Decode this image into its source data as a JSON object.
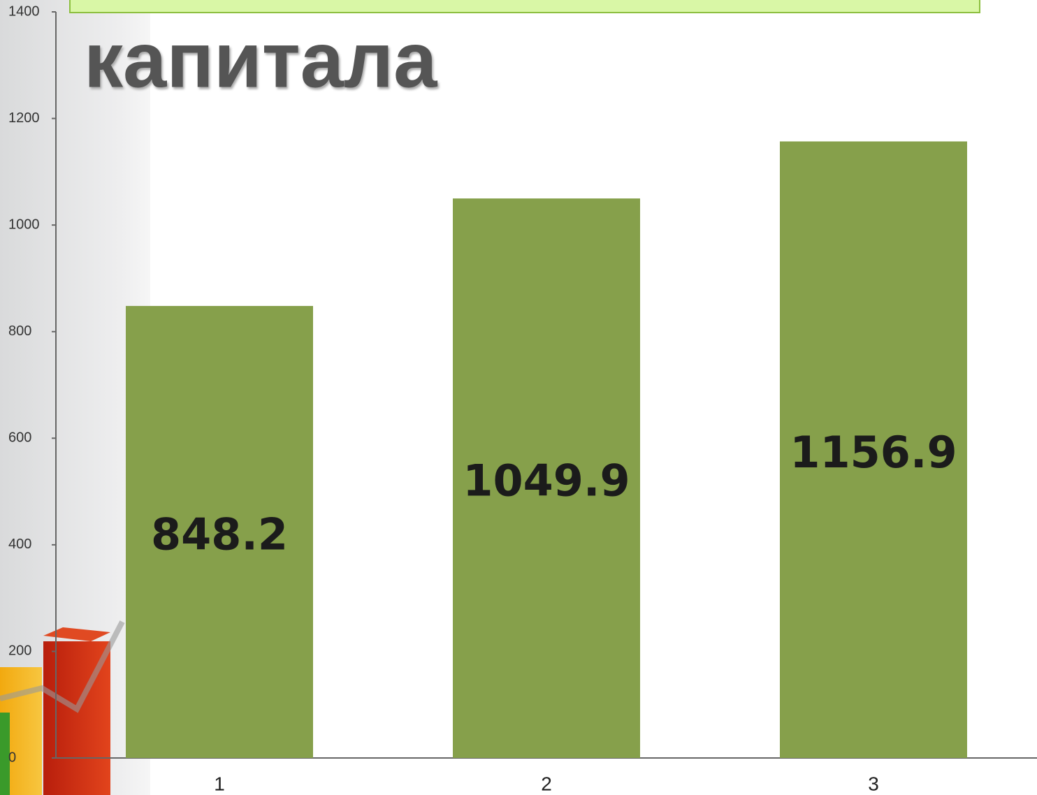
{
  "chart_data": {
    "type": "bar",
    "title": "капитала",
    "categories": [
      "1",
      "2",
      "3"
    ],
    "values": [
      848.2,
      1049.9,
      1156.9
    ],
    "color": "#86a04b",
    "ylim": [
      0,
      1400
    ],
    "yticks": [
      0,
      200,
      400,
      600,
      800,
      1000,
      1200,
      1400
    ]
  }
}
